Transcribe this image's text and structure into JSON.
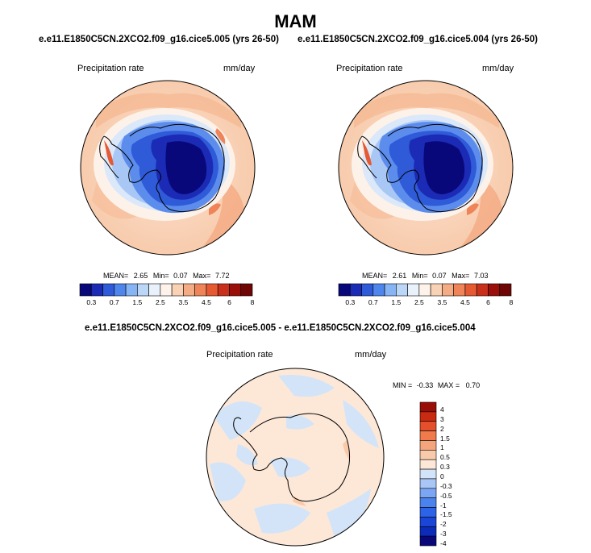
{
  "title": "MAM",
  "panels": [
    {
      "case": "e.e11.E1850C5CN.2XCO2.f09_g16.cice5.005 (yrs 26-50)",
      "variable": "Precipitation rate",
      "units": "mm/day",
      "stats": {
        "mean_label": "MEAN=",
        "mean": "2.65",
        "min_label": "Min=",
        "min": "0.07",
        "max_label": "Max=",
        "max": "7.72"
      }
    },
    {
      "case": "e.e11.E1850C5CN.2XCO2.f09_g16.cice5.004 (yrs 26-50)",
      "variable": "Precipitation rate",
      "units": "mm/day",
      "stats": {
        "mean_label": "MEAN=",
        "mean": "2.61",
        "min_label": "Min=",
        "min": "0.07",
        "max_label": "Max=",
        "max": "7.03"
      }
    }
  ],
  "colorbar_top": {
    "colors": [
      "#08087a",
      "#1b2bb5",
      "#2f5ad8",
      "#4f86ec",
      "#86b4f4",
      "#bcd6f8",
      "#e9f1fb",
      "#fdf3ea",
      "#f9d2b6",
      "#f4ac85",
      "#ef8458",
      "#e65a33",
      "#c9301b",
      "#9b0f0a",
      "#6e0605"
    ],
    "labels": [
      "0.3",
      "0.7",
      "1.5",
      "2.5",
      "3.5",
      "4.5",
      "6",
      "8"
    ]
  },
  "diff": {
    "case": "e.e11.E1850C5CN.2XCO2.f09_g16.cice5.005 - e.e11.E1850C5CN.2XCO2.f09_g16.cice5.004",
    "variable": "Precipitation rate",
    "units": "mm/day",
    "min_label": "MIN =",
    "min": "-0.33",
    "max_label": "MAX =",
    "max": "0.70"
  },
  "colorbar_diff": {
    "colors": [
      "#08087a",
      "#0c2bb8",
      "#1a45d6",
      "#2d63e6",
      "#4a82ee",
      "#7aa6f3",
      "#a8c6f6",
      "#d3e4f8",
      "#fde8d8",
      "#f9caa9",
      "#f5a57c",
      "#f07a4c",
      "#e4502c",
      "#c92a12",
      "#9a0e08"
    ],
    "labels": [
      "4",
      "3",
      "2",
      "1.5",
      "1",
      "0.5",
      "0.3",
      "0",
      "-0.3",
      "-0.5",
      "-1",
      "-1.5",
      "-2",
      "-3",
      "-4"
    ]
  }
}
